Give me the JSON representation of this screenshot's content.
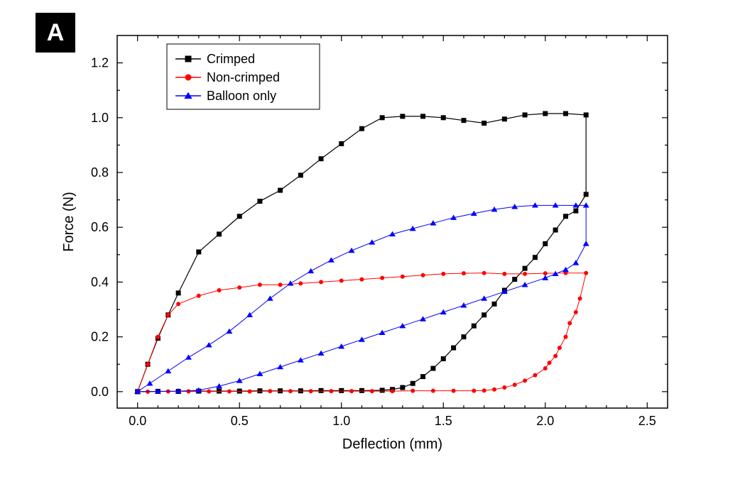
{
  "panel_label": "A",
  "chart": {
    "type": "line-scatter-hysteresis",
    "background_color": "#ffffff",
    "axis_color": "#000000",
    "xlabel": "Deflection (mm)",
    "ylabel": "Force (N)",
    "label_fontsize": 20,
    "tick_fontsize": 18,
    "xlim": [
      -0.1,
      2.6
    ],
    "ylim": [
      -0.06,
      1.3
    ],
    "xticks_major": [
      0.0,
      0.5,
      1.0,
      1.5,
      2.0,
      2.5
    ],
    "xticks_minor_step": 0.1,
    "yticks_major": [
      0.0,
      0.2,
      0.4,
      0.6,
      0.8,
      1.0,
      1.2
    ],
    "yticks_minor_step": 0.1,
    "legend": {
      "position": "top-left-inside",
      "border_color": "#000000",
      "background": "#ffffff",
      "items": [
        {
          "label": "Crimped",
          "color": "#000000",
          "marker": "square"
        },
        {
          "label": "Non-crimped",
          "color": "#ff0000",
          "marker": "circle"
        },
        {
          "label": "Balloon only",
          "color": "#0000ff",
          "marker": "triangle"
        }
      ]
    },
    "series": [
      {
        "name": "Crimped",
        "color": "#000000",
        "marker": "square",
        "marker_size": 6,
        "line_width": 1.2,
        "points": [
          [
            0.0,
            0.0
          ],
          [
            0.05,
            0.1
          ],
          [
            0.1,
            0.195
          ],
          [
            0.15,
            0.28
          ],
          [
            0.2,
            0.36
          ],
          [
            0.3,
            0.51
          ],
          [
            0.4,
            0.575
          ],
          [
            0.5,
            0.64
          ],
          [
            0.6,
            0.695
          ],
          [
            0.7,
            0.735
          ],
          [
            0.8,
            0.79
          ],
          [
            0.9,
            0.85
          ],
          [
            1.0,
            0.905
          ],
          [
            1.1,
            0.96
          ],
          [
            1.2,
            1.0
          ],
          [
            1.3,
            1.005
          ],
          [
            1.4,
            1.005
          ],
          [
            1.5,
            1.0
          ],
          [
            1.6,
            0.99
          ],
          [
            1.7,
            0.98
          ],
          [
            1.8,
            0.995
          ],
          [
            1.9,
            1.01
          ],
          [
            2.0,
            1.015
          ],
          [
            2.1,
            1.015
          ],
          [
            2.2,
            1.01
          ],
          [
            2.2,
            0.72
          ],
          [
            2.15,
            0.66
          ],
          [
            2.1,
            0.64
          ],
          [
            2.05,
            0.59
          ],
          [
            2.0,
            0.54
          ],
          [
            1.95,
            0.49
          ],
          [
            1.9,
            0.45
          ],
          [
            1.85,
            0.41
          ],
          [
            1.8,
            0.37
          ],
          [
            1.75,
            0.32
          ],
          [
            1.7,
            0.28
          ],
          [
            1.65,
            0.24
          ],
          [
            1.6,
            0.2
          ],
          [
            1.55,
            0.16
          ],
          [
            1.5,
            0.12
          ],
          [
            1.45,
            0.085
          ],
          [
            1.4,
            0.055
          ],
          [
            1.35,
            0.03
          ],
          [
            1.3,
            0.015
          ],
          [
            1.25,
            0.008
          ],
          [
            1.2,
            0.005
          ],
          [
            1.1,
            0.004
          ],
          [
            1.0,
            0.004
          ],
          [
            0.9,
            0.004
          ],
          [
            0.8,
            0.003
          ],
          [
            0.7,
            0.003
          ],
          [
            0.6,
            0.003
          ],
          [
            0.5,
            0.002
          ],
          [
            0.4,
            0.002
          ],
          [
            0.3,
            0.002
          ],
          [
            0.2,
            0.001
          ],
          [
            0.1,
            0.001
          ],
          [
            0.0,
            0.0
          ]
        ]
      },
      {
        "name": "Non-crimped",
        "color": "#ff0000",
        "marker": "circle",
        "marker_size": 5,
        "line_width": 1.0,
        "points": [
          [
            0.0,
            0.0
          ],
          [
            0.05,
            0.1
          ],
          [
            0.1,
            0.2
          ],
          [
            0.15,
            0.28
          ],
          [
            0.2,
            0.32
          ],
          [
            0.3,
            0.35
          ],
          [
            0.4,
            0.37
          ],
          [
            0.5,
            0.38
          ],
          [
            0.6,
            0.39
          ],
          [
            0.7,
            0.39
          ],
          [
            0.8,
            0.395
          ],
          [
            0.9,
            0.4
          ],
          [
            1.0,
            0.405
          ],
          [
            1.1,
            0.41
          ],
          [
            1.2,
            0.415
          ],
          [
            1.3,
            0.42
          ],
          [
            1.4,
            0.425
          ],
          [
            1.5,
            0.43
          ],
          [
            1.6,
            0.432
          ],
          [
            1.7,
            0.433
          ],
          [
            1.8,
            0.43
          ],
          [
            1.9,
            0.43
          ],
          [
            2.0,
            0.432
          ],
          [
            2.1,
            0.433
          ],
          [
            2.2,
            0.433
          ],
          [
            2.17,
            0.34
          ],
          [
            2.15,
            0.29
          ],
          [
            2.12,
            0.25
          ],
          [
            2.1,
            0.2
          ],
          [
            2.07,
            0.16
          ],
          [
            2.05,
            0.13
          ],
          [
            2.02,
            0.105
          ],
          [
            2.0,
            0.085
          ],
          [
            1.95,
            0.06
          ],
          [
            1.9,
            0.04
          ],
          [
            1.85,
            0.025
          ],
          [
            1.8,
            0.015
          ],
          [
            1.75,
            0.008
          ],
          [
            1.7,
            0.004
          ],
          [
            1.65,
            0.003
          ],
          [
            1.55,
            0.003
          ],
          [
            1.45,
            0.003
          ],
          [
            1.35,
            0.003
          ],
          [
            1.25,
            0.002
          ],
          [
            1.15,
            0.002
          ],
          [
            1.05,
            0.002
          ],
          [
            0.95,
            0.002
          ],
          [
            0.85,
            0.002
          ],
          [
            0.75,
            0.002
          ],
          [
            0.65,
            0.002
          ],
          [
            0.55,
            0.001
          ],
          [
            0.45,
            0.001
          ],
          [
            0.35,
            0.001
          ],
          [
            0.25,
            0.001
          ],
          [
            0.15,
            0.001
          ],
          [
            0.05,
            0.0
          ],
          [
            0.0,
            0.0
          ]
        ]
      },
      {
        "name": "Balloon only",
        "color": "#0000ff",
        "marker": "triangle",
        "marker_size": 6,
        "line_width": 1.0,
        "points": [
          [
            0.0,
            0.0
          ],
          [
            0.06,
            0.03
          ],
          [
            0.15,
            0.075
          ],
          [
            0.25,
            0.125
          ],
          [
            0.35,
            0.17
          ],
          [
            0.45,
            0.22
          ],
          [
            0.55,
            0.28
          ],
          [
            0.65,
            0.34
          ],
          [
            0.75,
            0.395
          ],
          [
            0.85,
            0.44
          ],
          [
            0.95,
            0.48
          ],
          [
            1.05,
            0.515
          ],
          [
            1.15,
            0.545
          ],
          [
            1.25,
            0.575
          ],
          [
            1.35,
            0.595
          ],
          [
            1.45,
            0.615
          ],
          [
            1.55,
            0.635
          ],
          [
            1.65,
            0.65
          ],
          [
            1.75,
            0.665
          ],
          [
            1.85,
            0.675
          ],
          [
            1.95,
            0.68
          ],
          [
            2.05,
            0.68
          ],
          [
            2.15,
            0.68
          ],
          [
            2.2,
            0.68
          ],
          [
            2.2,
            0.54
          ],
          [
            2.15,
            0.47
          ],
          [
            2.1,
            0.445
          ],
          [
            2.05,
            0.43
          ],
          [
            2.0,
            0.415
          ],
          [
            1.9,
            0.39
          ],
          [
            1.8,
            0.365
          ],
          [
            1.7,
            0.34
          ],
          [
            1.6,
            0.315
          ],
          [
            1.5,
            0.29
          ],
          [
            1.4,
            0.265
          ],
          [
            1.3,
            0.24
          ],
          [
            1.2,
            0.215
          ],
          [
            1.1,
            0.19
          ],
          [
            1.0,
            0.165
          ],
          [
            0.9,
            0.14
          ],
          [
            0.8,
            0.115
          ],
          [
            0.7,
            0.09
          ],
          [
            0.6,
            0.065
          ],
          [
            0.5,
            0.04
          ],
          [
            0.4,
            0.02
          ],
          [
            0.3,
            0.005
          ],
          [
            0.2,
            0.002
          ],
          [
            0.1,
            0.001
          ],
          [
            0.0,
            0.0
          ]
        ]
      }
    ]
  }
}
